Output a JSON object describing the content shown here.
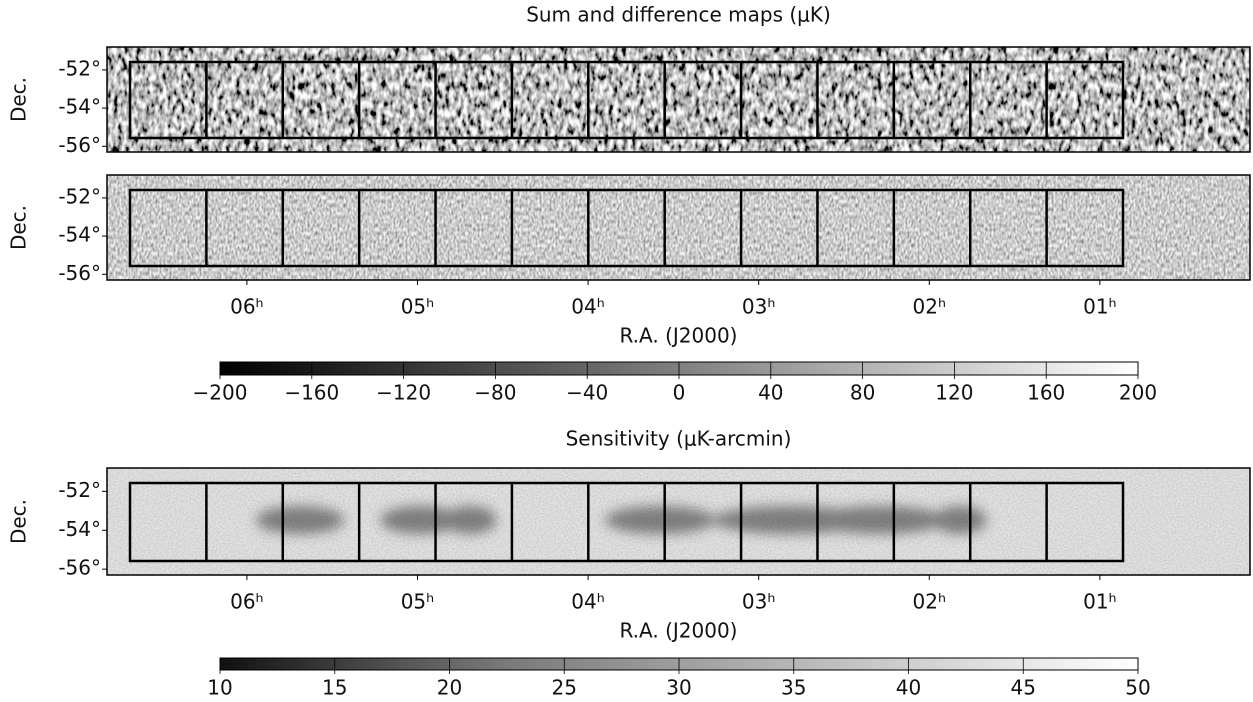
{
  "chart_data": [
    {
      "type": "map",
      "title": "Sum and difference maps (μK)",
      "ylabel": "Dec.",
      "ylim": [
        -56.3,
        -50.8
      ],
      "yticks": [
        {
          "value": -52,
          "label": "-52°"
        },
        {
          "value": -54,
          "label": "-54°"
        },
        {
          "value": -56,
          "label": "-56°"
        }
      ]
    },
    {
      "type": "map",
      "ylabel": "Dec.",
      "ylim": [
        -56.3,
        -50.8
      ],
      "yticks": [
        {
          "value": -52,
          "label": "-52°"
        },
        {
          "value": -54,
          "label": "-54°"
        },
        {
          "value": -56,
          "label": "-56°"
        }
      ],
      "xlabel": "R.A. (J2000)",
      "xlim": [
        6.82,
        0.12
      ],
      "xticks": [
        {
          "value": 6,
          "label": "06ʰ"
        },
        {
          "value": 5,
          "label": "05ʰ"
        },
        {
          "value": 4,
          "label": "04ʰ"
        },
        {
          "value": 3,
          "label": "03ʰ"
        },
        {
          "value": 2,
          "label": "02ʰ"
        },
        {
          "value": 1,
          "label": "01ʰ"
        }
      ]
    },
    {
      "type": "colorbar",
      "xlim": [
        -200,
        200
      ],
      "xticks": [
        {
          "value": -200,
          "label": "−200"
        },
        {
          "value": -160,
          "label": "−160"
        },
        {
          "value": -120,
          "label": "−120"
        },
        {
          "value": -80,
          "label": "−80"
        },
        {
          "value": -40,
          "label": "−40"
        },
        0,
        40,
        80,
        120,
        160,
        200
      ]
    },
    {
      "type": "map",
      "title": "Sensitivity (μK-arcmin)",
      "ylabel": "Dec.",
      "ylim": [
        -56.3,
        -50.8
      ],
      "yticks": [
        {
          "value": -52,
          "label": "-52°"
        },
        {
          "value": -54,
          "label": "-54°"
        },
        {
          "value": -56,
          "label": "-56°"
        }
      ],
      "xlabel": "R.A. (J2000)",
      "xlim": [
        6.82,
        0.12
      ],
      "xticks": [
        {
          "value": 6,
          "label": "06ʰ"
        },
        {
          "value": 5,
          "label": "05ʰ"
        },
        {
          "value": 4,
          "label": "04ʰ"
        },
        {
          "value": 3,
          "label": "03ʰ"
        },
        {
          "value": 2,
          "label": "02ʰ"
        },
        {
          "value": 1,
          "label": "01ʰ"
        }
      ]
    },
    {
      "type": "colorbar",
      "xlim": [
        10,
        50
      ],
      "xticks": [
        10,
        15,
        20,
        25,
        30,
        35,
        40,
        45,
        50
      ]
    }
  ]
}
